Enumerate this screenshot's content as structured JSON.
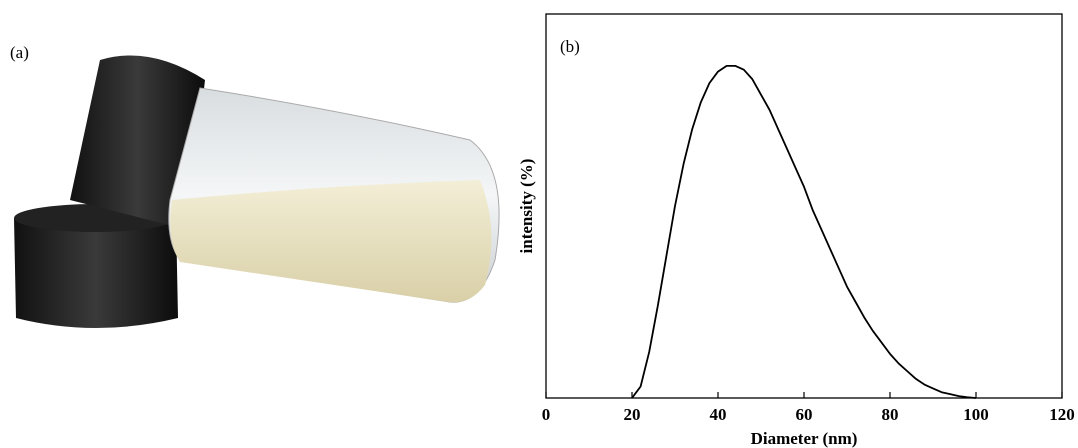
{
  "panel_a": {
    "label": "(a)"
  },
  "chart_data": {
    "type": "line",
    "panel_label": "(b)",
    "x_label": "Diameter (nm)",
    "y_label": "intensity (%)",
    "x": [
      20,
      22,
      24,
      26,
      28,
      30,
      32,
      34,
      36,
      38,
      40,
      42,
      44,
      46,
      48,
      50,
      52,
      54,
      56,
      58,
      60,
      62,
      64,
      66,
      68,
      70,
      72,
      74,
      76,
      78,
      80,
      82,
      84,
      86,
      88,
      90,
      92,
      94,
      96,
      98,
      100
    ],
    "series": [
      {
        "color": "#000000",
        "values": [
          0,
          3,
          12,
          24,
          37,
          50,
          61,
          70,
          77,
          82,
          85,
          86.5,
          86.5,
          85.5,
          83,
          79,
          75,
          70,
          65,
          60,
          55,
          49,
          44,
          39,
          34,
          29,
          25,
          21,
          17.5,
          14.5,
          11.5,
          9,
          7,
          5,
          3.5,
          2.5,
          1.5,
          1,
          0.5,
          0.2,
          0
        ]
      }
    ],
    "xlim": [
      0,
      120
    ],
    "xticks": [
      0,
      20,
      40,
      60,
      80,
      100,
      120
    ],
    "ylim": [
      0,
      100
    ]
  }
}
